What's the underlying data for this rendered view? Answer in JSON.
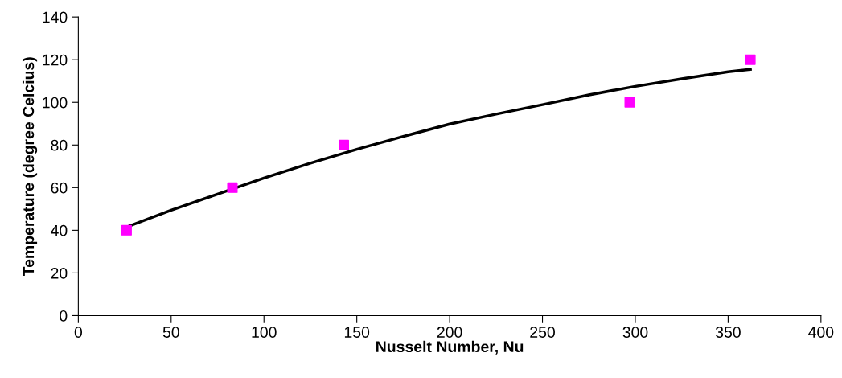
{
  "chart_data": {
    "type": "scatter",
    "xlabel": "Nusselt Number, Nu",
    "ylabel": "Temperature (degree Celcius)",
    "xlim": [
      0,
      400
    ],
    "xticks": [
      0,
      50,
      100,
      150,
      200,
      250,
      300,
      350,
      400
    ],
    "ylim": [
      0,
      140
    ],
    "yticks": [
      0,
      20,
      40,
      60,
      80,
      100,
      120,
      140
    ],
    "grid": false,
    "legend": false,
    "series": [
      {
        "color": "#ff00ff",
        "marker": "square",
        "x": [
          26,
          83,
          143,
          297,
          362
        ],
        "values": [
          40,
          60,
          80,
          100,
          120
        ]
      },
      {
        "type": "line",
        "color": "#000000",
        "marker": "none",
        "line_style": "solid",
        "x": [
          26,
          50,
          75,
          100,
          125,
          150,
          175,
          200,
          225,
          250,
          275,
          300,
          325,
          350,
          362
        ],
        "values": [
          41.5,
          49.4,
          57,
          64.5,
          71.5,
          78,
          84,
          89.8,
          94.5,
          98.9,
          103.5,
          107.5,
          111,
          114.3,
          115.5
        ]
      }
    ]
  }
}
